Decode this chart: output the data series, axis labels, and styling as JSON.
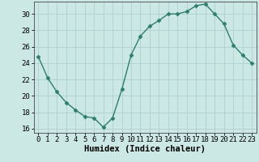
{
  "x": [
    0,
    1,
    2,
    3,
    4,
    5,
    6,
    7,
    8,
    9,
    10,
    11,
    12,
    13,
    14,
    15,
    16,
    17,
    18,
    19,
    20,
    21,
    22,
    23
  ],
  "y": [
    24.8,
    22.2,
    20.5,
    19.2,
    18.3,
    17.5,
    17.3,
    16.2,
    17.3,
    20.8,
    25.0,
    27.3,
    28.5,
    29.2,
    30.0,
    30.0,
    30.3,
    31.0,
    31.2,
    30.0,
    28.8,
    26.2,
    25.0,
    24.0
  ],
  "line_color": "#2e7d6e",
  "bg_color": "#cce8e4",
  "grid_color": "#aed0cc",
  "xlabel": "Humidex (Indice chaleur)",
  "ylim": [
    15.5,
    31.5
  ],
  "yticks": [
    16,
    18,
    20,
    22,
    24,
    26,
    28,
    30
  ],
  "xticks": [
    0,
    1,
    2,
    3,
    4,
    5,
    6,
    7,
    8,
    9,
    10,
    11,
    12,
    13,
    14,
    15,
    16,
    17,
    18,
    19,
    20,
    21,
    22,
    23
  ],
  "xlabel_fontsize": 7.5,
  "tick_fontsize": 6.5,
  "marker": "D",
  "marker_size": 2.5,
  "linewidth": 1.0
}
